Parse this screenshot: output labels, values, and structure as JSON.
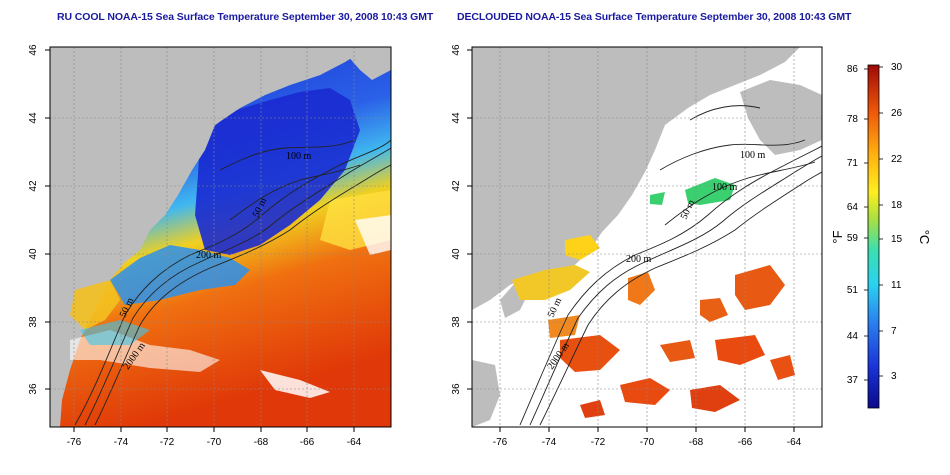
{
  "panels": [
    {
      "id": "left",
      "title": "RU COOL NOAA-15 Sea Surface Temperature September 30, 2008 10:43 GMT",
      "contour_labels": [
        "100 m",
        "50 m",
        "200 m",
        "50 m",
        "2000 m"
      ]
    },
    {
      "id": "right",
      "title": "DECLOUDED NOAA-15 Sea Surface Temperature September 30, 2008 10:43 GMT",
      "contour_labels": [
        "100 m",
        "100 m",
        "50 m",
        "200 m",
        "50 m",
        "2000 m"
      ]
    }
  ],
  "axes": {
    "x_ticks": [
      "-76",
      "-74",
      "-72",
      "-70",
      "-68",
      "-66",
      "-64"
    ],
    "y_ticks": [
      "36",
      "38",
      "40",
      "42",
      "44",
      "46"
    ],
    "x_range": [
      -77,
      -63
    ],
    "y_range": [
      35,
      46
    ]
  },
  "colorbar": {
    "f_ticks": [
      "86",
      "78",
      "71",
      "64",
      "59",
      "51",
      "44",
      "37"
    ],
    "c_ticks": [
      "30",
      "26",
      "22",
      "18",
      "15",
      "11",
      "7",
      "3"
    ],
    "f_unit": "°F",
    "c_unit": "°C",
    "range_c": [
      0,
      30
    ]
  },
  "colors": {
    "land": "#bdbdbd",
    "cold": "#1a33cc",
    "mid": "#35c2f0",
    "warm": "#ffd21a",
    "hot": "#e8380a",
    "title": "#1a1aa0"
  }
}
